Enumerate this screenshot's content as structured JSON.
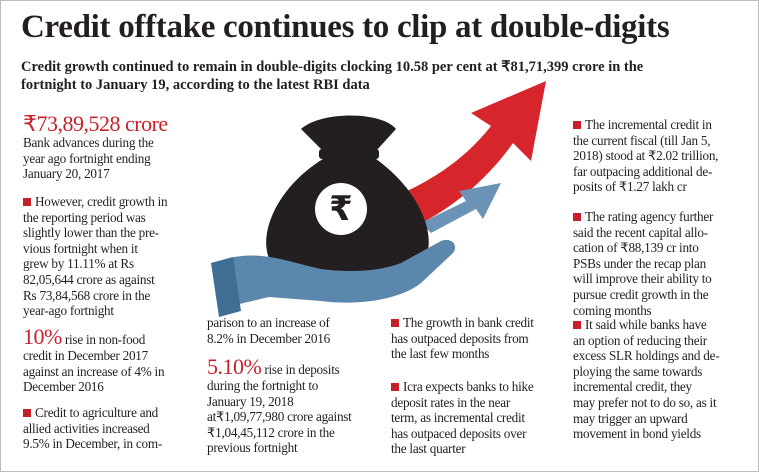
{
  "title": "Credit offtake continues to clip at double-digits",
  "subtitle": [
    "Credit growth continued to remain in double-digits clocking 10.58 per cent at ₹81,71,399 crore in the",
    "fortnight to January 19, according to the latest RBI data"
  ],
  "columns": [
    [
      {
        "highlight": "₹73,89,528 crore",
        "lines": [
          "Bank advances during the",
          "year ago fortnight ending",
          "January 20, 2017"
        ]
      },
      {
        "bullet": true,
        "lines": [
          "However, credit growth in",
          "the reporting period was",
          "slightly lower than the pre-",
          "vious fortnight when it",
          "grew by 11.11% at Rs",
          "82,05,644 crore as against",
          "Rs 73,84,568 crore in the",
          "year-ago fortnight"
        ]
      },
      {
        "highlight": "10%",
        "lines": [
          "rise in non-food",
          "credit in December 2017",
          "against an increase of 4% in",
          "December 2016"
        ]
      },
      {
        "bullet": true,
        "lines": [
          "Credit to agriculture and",
          "allied activities increased",
          "9.5% in December, in com-"
        ]
      }
    ],
    [
      {
        "lines": [
          "parison to an increase of",
          "8.2% in December 2016"
        ]
      },
      {
        "highlight": "5.10%",
        "lines": [
          "rise in deposits",
          "during the fortnight to",
          "January 19, 2018",
          "at₹1,09,77,980 crore against",
          "₹1,04,45,112 crore in the",
          "previous fortnight"
        ]
      }
    ],
    [
      {
        "bullet": true,
        "lines": [
          "The growth in bank credit",
          "has outpaced deposits from",
          "the last few months"
        ]
      },
      {
        "bullet": true,
        "lines": [
          "Icra expects banks to hike",
          "deposit rates in the near",
          "term, as incremental credit",
          "has outpaced deposits over",
          "the last quarter"
        ]
      }
    ],
    [
      {
        "bullet": true,
        "lines": [
          "The incremental credit in",
          "the current fiscal (till Jan 5,",
          "2018) stood at ₹2.02 trillion,",
          "far outpacing additional de-",
          "posits of ₹1.27 lakh cr"
        ]
      },
      {
        "bullet": true,
        "lines": [
          "The rating agency further",
          "said the recent capital allo-",
          "cation of ₹88,139 cr into",
          "PSBs under the recap plan",
          "will improve their ability to",
          "pursue credit growth in the",
          "coming months"
        ]
      },
      {
        "bullet": true,
        "lines": [
          "It said while banks have",
          "an option of reducing their",
          "excess SLR holdings and de-",
          "ploying the same towards",
          "incremental credit, they",
          "may prefer not to do so, as it",
          "may trigger an upward",
          "movement in bond yields"
        ]
      }
    ]
  ]
}
